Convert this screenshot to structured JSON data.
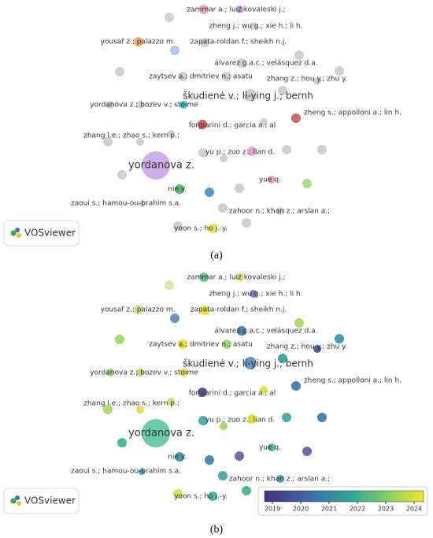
{
  "panels": [
    {
      "caption": "(a)",
      "logo": "VOSviewer",
      "labels": [
        "zammar a.; luiz kovaleski j.;",
        "zheng j.; wu g.; xie h.; li h.",
        "yousaf z.; palazzo m.",
        "zapata-roldan f.; sheikh n.j.",
        "álvarez g.a.c.; velásquez d.a.",
        "zaytsev a.; dmitriev n.; asatu",
        "zhang z.; hou y.; zhu y.",
        "škudienė v.; li-ying j.; bernh",
        "yordanova z.; bozev v.; stoime",
        "zheng s.; appolloni a.; lin h.",
        "forgiarini d.; garcia a.; al",
        "zhang l.e.; zhao s.; kern p.;",
        "yu p.; zuo z.; lian d.",
        "yordanova z.",
        "yue q.",
        "nie y.",
        "zaoui s.; hamou-ou-brahim s.a.",
        "zahoor n.; khan z.; arslan a.;",
        "yoon s.; ho j.-y."
      ]
    },
    {
      "caption": "(b)",
      "logo": "VOSviewer",
      "labels": [
        "zammar a.; luiz kovaleski j.;",
        "zheng j.; wu g.; xie h.; li h.",
        "yousaf z.; palazzo m.",
        "zapata-roldan f.; sheikh n.j.",
        "álvarez g.a.c.; velásquez d.a.",
        "zaytsev a.; dmitriev n.; asatu",
        "zhang z.; hou y.; zhu y.",
        "škudienė v.; li-ying j.; bernh",
        "yordanova z.; bozev v.; stoime",
        "zheng s.; appolloni a.; lin h.",
        "forgiarini d.; garcia a.; al",
        "zhang l.e.; zhao s.; kern p.;",
        "yu p.; zuo z.; lian d.",
        "yordanova z.",
        "yue q.",
        "nie y.",
        "zaoui s.; hamou-ou-brahim s.a.",
        "zahoor n.; khan z.; arslan a.;",
        "yoon s.; ho j.-y."
      ],
      "legend_ticks": [
        2019,
        2020,
        2021,
        2022,
        2023,
        2024
      ]
    }
  ]
}
